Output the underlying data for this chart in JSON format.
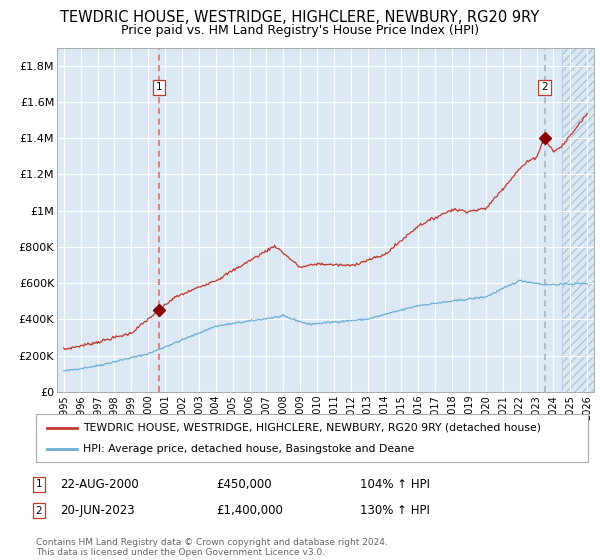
{
  "title": "TEWDRIC HOUSE, WESTRIDGE, HIGHCLERE, NEWBURY, RG20 9RY",
  "subtitle": "Price paid vs. HM Land Registry's House Price Index (HPI)",
  "title_fontsize": 10.5,
  "subtitle_fontsize": 9,
  "bg_color": "#dce9f5",
  "hatch_color": "#adc8e0",
  "grid_color": "#ffffff",
  "line1_color": "#c0392b",
  "line2_color": "#6aaed6",
  "vline1_color": "#e74c3c",
  "vline2_color": "#8899aa",
  "marker_color": "#8b0000",
  "sale1_year": 2000.646,
  "sale1_price": 450000,
  "sale2_year": 2023.472,
  "sale2_price": 1400000,
  "ylim": [
    0,
    1900000
  ],
  "xlim_start": 1994.6,
  "xlim_end": 2026.4,
  "ylabel_ticks": [
    0,
    200000,
    400000,
    600000,
    800000,
    1000000,
    1200000,
    1400000,
    1600000,
    1800000
  ],
  "ylabel_labels": [
    "£0",
    "£200K",
    "£400K",
    "£600K",
    "£800K",
    "£1M",
    "£1.2M",
    "£1.4M",
    "£1.6M",
    "£1.8M"
  ],
  "xtick_years": [
    1995,
    1996,
    1997,
    1998,
    1999,
    2000,
    2001,
    2002,
    2003,
    2004,
    2005,
    2006,
    2007,
    2008,
    2009,
    2010,
    2011,
    2012,
    2013,
    2014,
    2015,
    2016,
    2017,
    2018,
    2019,
    2020,
    2021,
    2022,
    2023,
    2024,
    2025,
    2026
  ],
  "hatch_start": 2024.5,
  "legend1_label": "TEWDRIC HOUSE, WESTRIDGE, HIGHCLERE, NEWBURY, RG20 9RY (detached house)",
  "legend2_label": "HPI: Average price, detached house, Basingstoke and Deane",
  "note1_label": "1",
  "note1_date": "22-AUG-2000",
  "note1_price": "£450,000",
  "note1_pct": "104% ↑ HPI",
  "note2_label": "2",
  "note2_date": "20-JUN-2023",
  "note2_price": "£1,400,000",
  "note2_pct": "130% ↑ HPI",
  "footer": "Contains HM Land Registry data © Crown copyright and database right 2024.\nThis data is licensed under the Open Government Licence v3.0."
}
